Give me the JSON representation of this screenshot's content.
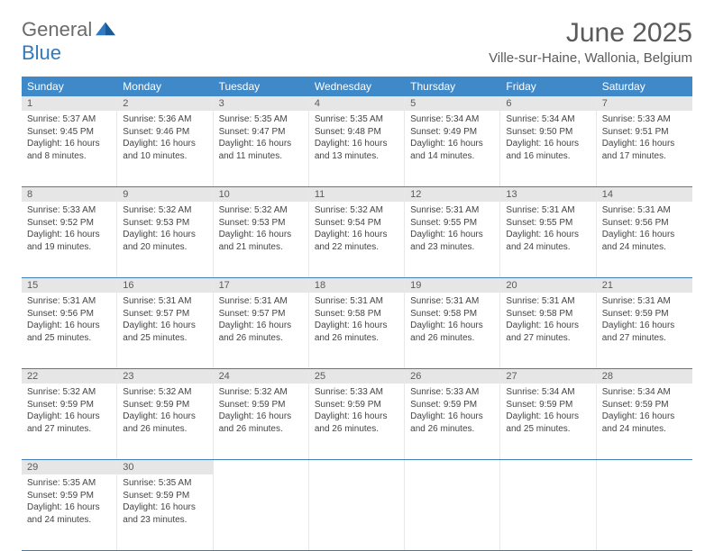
{
  "logo": {
    "general": "General",
    "blue": "Blue"
  },
  "title": "June 2025",
  "location": "Ville-sur-Haine, Wallonia, Belgium",
  "colors": {
    "header_bg": "#3f89c9",
    "header_text": "#ffffff",
    "daynum_bg": "#e6e6e6",
    "rule": "#3f7fb5",
    "text": "#444444",
    "logo_gray": "#6b6b6b",
    "logo_blue": "#2f7ac0"
  },
  "day_names": [
    "Sunday",
    "Monday",
    "Tuesday",
    "Wednesday",
    "Thursday",
    "Friday",
    "Saturday"
  ],
  "weeks": [
    [
      {
        "n": "1",
        "sr": "5:37 AM",
        "ss": "9:45 PM",
        "dl": "16 hours and 8 minutes."
      },
      {
        "n": "2",
        "sr": "5:36 AM",
        "ss": "9:46 PM",
        "dl": "16 hours and 10 minutes."
      },
      {
        "n": "3",
        "sr": "5:35 AM",
        "ss": "9:47 PM",
        "dl": "16 hours and 11 minutes."
      },
      {
        "n": "4",
        "sr": "5:35 AM",
        "ss": "9:48 PM",
        "dl": "16 hours and 13 minutes."
      },
      {
        "n": "5",
        "sr": "5:34 AM",
        "ss": "9:49 PM",
        "dl": "16 hours and 14 minutes."
      },
      {
        "n": "6",
        "sr": "5:34 AM",
        "ss": "9:50 PM",
        "dl": "16 hours and 16 minutes."
      },
      {
        "n": "7",
        "sr": "5:33 AM",
        "ss": "9:51 PM",
        "dl": "16 hours and 17 minutes."
      }
    ],
    [
      {
        "n": "8",
        "sr": "5:33 AM",
        "ss": "9:52 PM",
        "dl": "16 hours and 19 minutes."
      },
      {
        "n": "9",
        "sr": "5:32 AM",
        "ss": "9:53 PM",
        "dl": "16 hours and 20 minutes."
      },
      {
        "n": "10",
        "sr": "5:32 AM",
        "ss": "9:53 PM",
        "dl": "16 hours and 21 minutes."
      },
      {
        "n": "11",
        "sr": "5:32 AM",
        "ss": "9:54 PM",
        "dl": "16 hours and 22 minutes."
      },
      {
        "n": "12",
        "sr": "5:31 AM",
        "ss": "9:55 PM",
        "dl": "16 hours and 23 minutes."
      },
      {
        "n": "13",
        "sr": "5:31 AM",
        "ss": "9:55 PM",
        "dl": "16 hours and 24 minutes."
      },
      {
        "n": "14",
        "sr": "5:31 AM",
        "ss": "9:56 PM",
        "dl": "16 hours and 24 minutes."
      }
    ],
    [
      {
        "n": "15",
        "sr": "5:31 AM",
        "ss": "9:56 PM",
        "dl": "16 hours and 25 minutes."
      },
      {
        "n": "16",
        "sr": "5:31 AM",
        "ss": "9:57 PM",
        "dl": "16 hours and 25 minutes."
      },
      {
        "n": "17",
        "sr": "5:31 AM",
        "ss": "9:57 PM",
        "dl": "16 hours and 26 minutes."
      },
      {
        "n": "18",
        "sr": "5:31 AM",
        "ss": "9:58 PM",
        "dl": "16 hours and 26 minutes."
      },
      {
        "n": "19",
        "sr": "5:31 AM",
        "ss": "9:58 PM",
        "dl": "16 hours and 26 minutes."
      },
      {
        "n": "20",
        "sr": "5:31 AM",
        "ss": "9:58 PM",
        "dl": "16 hours and 27 minutes."
      },
      {
        "n": "21",
        "sr": "5:31 AM",
        "ss": "9:59 PM",
        "dl": "16 hours and 27 minutes."
      }
    ],
    [
      {
        "n": "22",
        "sr": "5:32 AM",
        "ss": "9:59 PM",
        "dl": "16 hours and 27 minutes."
      },
      {
        "n": "23",
        "sr": "5:32 AM",
        "ss": "9:59 PM",
        "dl": "16 hours and 26 minutes."
      },
      {
        "n": "24",
        "sr": "5:32 AM",
        "ss": "9:59 PM",
        "dl": "16 hours and 26 minutes."
      },
      {
        "n": "25",
        "sr": "5:33 AM",
        "ss": "9:59 PM",
        "dl": "16 hours and 26 minutes."
      },
      {
        "n": "26",
        "sr": "5:33 AM",
        "ss": "9:59 PM",
        "dl": "16 hours and 26 minutes."
      },
      {
        "n": "27",
        "sr": "5:34 AM",
        "ss": "9:59 PM",
        "dl": "16 hours and 25 minutes."
      },
      {
        "n": "28",
        "sr": "5:34 AM",
        "ss": "9:59 PM",
        "dl": "16 hours and 24 minutes."
      }
    ],
    [
      {
        "n": "29",
        "sr": "5:35 AM",
        "ss": "9:59 PM",
        "dl": "16 hours and 24 minutes."
      },
      {
        "n": "30",
        "sr": "5:35 AM",
        "ss": "9:59 PM",
        "dl": "16 hours and 23 minutes."
      },
      null,
      null,
      null,
      null,
      null
    ]
  ],
  "labels": {
    "sunrise": "Sunrise:",
    "sunset": "Sunset:",
    "daylight": "Daylight:"
  }
}
